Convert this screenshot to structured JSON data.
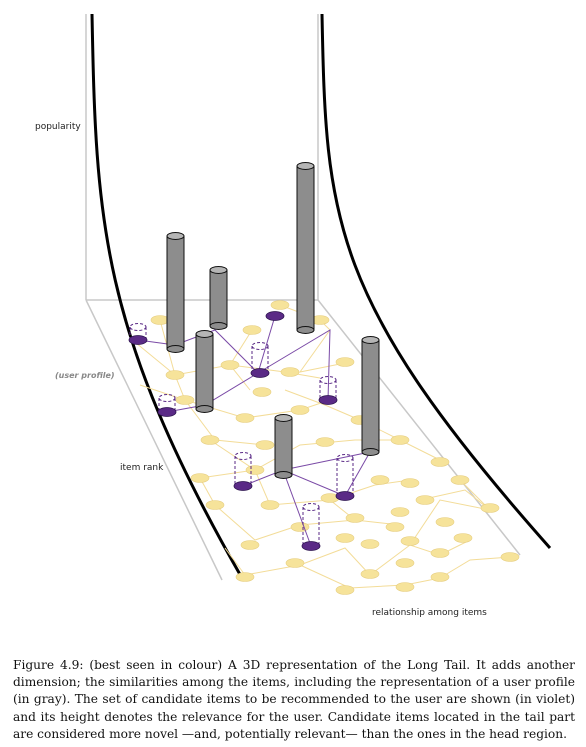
{
  "figure": {
    "axis_labels": {
      "popularity": "popularity",
      "user_profile": "(user profile)",
      "item_rank": "item rank",
      "relationship": "relationship among items"
    },
    "colors": {
      "tail_node": "#f6e39a",
      "tail_edge": "#f3dc98",
      "candidate": "#5a2a86",
      "candidate_edge": "#7a4aa6",
      "profile_bar": "#8d8d8d",
      "axis": "#111111",
      "plane_edge": "#c8c8c8"
    }
  },
  "caption": {
    "text": "Figure 4.9: (best seen in colour) A 3D representation of the Long Tail. It adds another dimension; the similarities among the items, including the representation of a user profile (in gray). The set of candidate items to be recommended to the user are shown (in violet) and its height denotes the relevance for the user. Candidate items located in the tail part are considered more novel —and, potentially relevant— than the ones in the head region."
  }
}
